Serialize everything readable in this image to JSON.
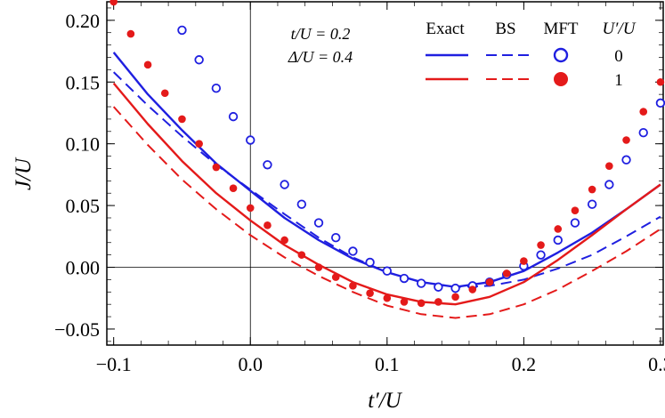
{
  "chart_data": {
    "type": "line",
    "xlabel": "t′/U",
    "ylabel": "J/U",
    "xlim": [
      -0.105,
      0.302
    ],
    "ylim": [
      -0.063,
      0.215
    ],
    "x_ticks": [
      -0.1,
      0.0,
      0.1,
      0.2,
      0.3
    ],
    "x_tick_labels": [
      "−0.1",
      "0.0",
      "0.1",
      "0.2",
      "0.3"
    ],
    "y_ticks": [
      -0.05,
      0.0,
      0.05,
      0.1,
      0.15,
      0.2
    ],
    "y_tick_labels": [
      "−0.05",
      "0.00",
      "0.05",
      "0.10",
      "0.15",
      "0.20"
    ],
    "params": [
      "t/U = 0.2",
      "Δ/U = 0.4"
    ],
    "legend": {
      "headers": [
        "Exact",
        "BS",
        "MFT",
        "U′/U"
      ],
      "rows": [
        {
          "value": "0",
          "color": "#1f1fe0"
        },
        {
          "value": "1",
          "color": "#e41a1a"
        }
      ]
    },
    "series": [
      {
        "group": "0",
        "method": "Exact",
        "style": "solid",
        "color": "#1f1fe0",
        "x": [
          -0.1,
          -0.075,
          -0.05,
          -0.025,
          0.0,
          0.025,
          0.05,
          0.075,
          0.1,
          0.125,
          0.15,
          0.175,
          0.2,
          0.225,
          0.25,
          0.275,
          0.3
        ],
        "y": [
          0.174,
          0.14,
          0.111,
          0.084,
          0.062,
          0.04,
          0.022,
          0.007,
          -0.004,
          -0.012,
          -0.016,
          -0.012,
          -0.003,
          0.012,
          0.028,
          0.047,
          0.067
        ]
      },
      {
        "group": "0",
        "method": "BS",
        "style": "dashed",
        "color": "#1f1fe0",
        "x": [
          -0.1,
          -0.075,
          -0.05,
          -0.025,
          0.0,
          0.025,
          0.05,
          0.075,
          0.1,
          0.125,
          0.15,
          0.175,
          0.2,
          0.225,
          0.25,
          0.275,
          0.3
        ],
        "y": [
          0.158,
          0.131,
          0.106,
          0.083,
          0.063,
          0.043,
          0.024,
          0.008,
          -0.004,
          -0.012,
          -0.016,
          -0.015,
          -0.01,
          -0.001,
          0.01,
          0.025,
          0.041
        ]
      },
      {
        "group": "1",
        "method": "Exact",
        "style": "solid",
        "color": "#e41a1a",
        "x": [
          -0.1,
          -0.075,
          -0.05,
          -0.025,
          0.0,
          0.025,
          0.05,
          0.075,
          0.1,
          0.125,
          0.15,
          0.175,
          0.2,
          0.225,
          0.25,
          0.275,
          0.3
        ],
        "y": [
          0.149,
          0.116,
          0.086,
          0.06,
          0.038,
          0.018,
          0.002,
          -0.012,
          -0.022,
          -0.028,
          -0.03,
          -0.024,
          -0.012,
          0.006,
          0.026,
          0.047,
          0.067
        ]
      },
      {
        "group": "1",
        "method": "BS",
        "style": "dashed",
        "color": "#e41a1a",
        "x": [
          -0.1,
          -0.075,
          -0.05,
          -0.025,
          0.0,
          0.025,
          0.05,
          0.075,
          0.1,
          0.125,
          0.15,
          0.175,
          0.2,
          0.225,
          0.25,
          0.275,
          0.3
        ],
        "y": [
          0.13,
          0.099,
          0.071,
          0.047,
          0.026,
          0.008,
          -0.007,
          -0.02,
          -0.031,
          -0.038,
          -0.041,
          -0.038,
          -0.03,
          -0.018,
          -0.003,
          0.013,
          0.031
        ]
      },
      {
        "group": "0",
        "method": "MFT",
        "style": "open-circle",
        "color": "#1f1fe0",
        "x": [
          -0.05,
          -0.0375,
          -0.025,
          -0.0125,
          0.0,
          0.0125,
          0.025,
          0.0375,
          0.05,
          0.0625,
          0.075,
          0.0875,
          0.1,
          0.1125,
          0.125,
          0.1375,
          0.15,
          0.1625,
          0.175,
          0.1875,
          0.2,
          0.2125,
          0.225,
          0.2375,
          0.25,
          0.2625,
          0.275,
          0.2875,
          0.3
        ],
        "y": [
          0.192,
          0.168,
          0.145,
          0.122,
          0.103,
          0.083,
          0.067,
          0.051,
          0.036,
          0.024,
          0.013,
          0.004,
          -0.003,
          -0.009,
          -0.013,
          -0.016,
          -0.017,
          -0.015,
          -0.012,
          -0.006,
          0.001,
          0.01,
          0.022,
          0.036,
          0.051,
          0.067,
          0.087,
          0.109,
          0.133
        ]
      },
      {
        "group": "1",
        "method": "MFT",
        "style": "filled-circle",
        "color": "#e41a1a",
        "x": [
          -0.1,
          -0.0875,
          -0.075,
          -0.0625,
          -0.05,
          -0.0375,
          -0.025,
          -0.0125,
          0.0,
          0.0125,
          0.025,
          0.0375,
          0.05,
          0.0625,
          0.075,
          0.0875,
          0.1,
          0.1125,
          0.125,
          0.1375,
          0.15,
          0.1625,
          0.175,
          0.1875,
          0.2,
          0.2125,
          0.225,
          0.2375,
          0.25,
          0.2625,
          0.275,
          0.2875,
          0.3
        ],
        "y": [
          0.215,
          0.189,
          0.164,
          0.141,
          0.12,
          0.1,
          0.081,
          0.064,
          0.048,
          0.034,
          0.022,
          0.01,
          0.0,
          -0.008,
          -0.015,
          -0.021,
          -0.025,
          -0.028,
          -0.029,
          -0.028,
          -0.024,
          -0.018,
          -0.012,
          -0.005,
          0.005,
          0.018,
          0.031,
          0.046,
          0.063,
          0.082,
          0.103,
          0.126,
          0.15
        ]
      }
    ]
  }
}
